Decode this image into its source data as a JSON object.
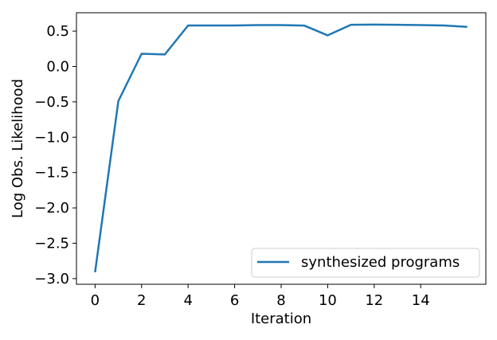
{
  "chart_data": {
    "type": "line",
    "title": "",
    "xlabel": "Iteration",
    "ylabel": "Log Obs. Likelihood",
    "xlim": [
      -0.8,
      16.8
    ],
    "ylim": [
      -3.08,
      0.76
    ],
    "x_ticks": [
      0,
      2,
      4,
      6,
      8,
      10,
      12,
      14
    ],
    "x_tick_labels": [
      "0",
      "2",
      "4",
      "6",
      "8",
      "10",
      "12",
      "14"
    ],
    "y_ticks": [
      0.5,
      0.0,
      -0.5,
      -1.0,
      -1.5,
      -2.0,
      -2.5,
      -3.0
    ],
    "y_tick_labels": [
      "0.5",
      "0.0",
      "−0.5",
      "−1.0",
      "−1.5",
      "−2.0",
      "−2.5",
      "−3.0"
    ],
    "grid": false,
    "legend_position": "lower-right",
    "series": [
      {
        "name": "synthesized programs",
        "color": "#1f77b4",
        "x": [
          0,
          1,
          2,
          3,
          4,
          5,
          6,
          7,
          8,
          9,
          10,
          11,
          12,
          13,
          14,
          15,
          16
        ],
        "y": [
          -2.91,
          -0.49,
          0.18,
          0.17,
          0.58,
          0.58,
          0.58,
          0.585,
          0.585,
          0.578,
          0.44,
          0.59,
          0.593,
          0.59,
          0.585,
          0.58,
          0.56
        ]
      }
    ]
  }
}
